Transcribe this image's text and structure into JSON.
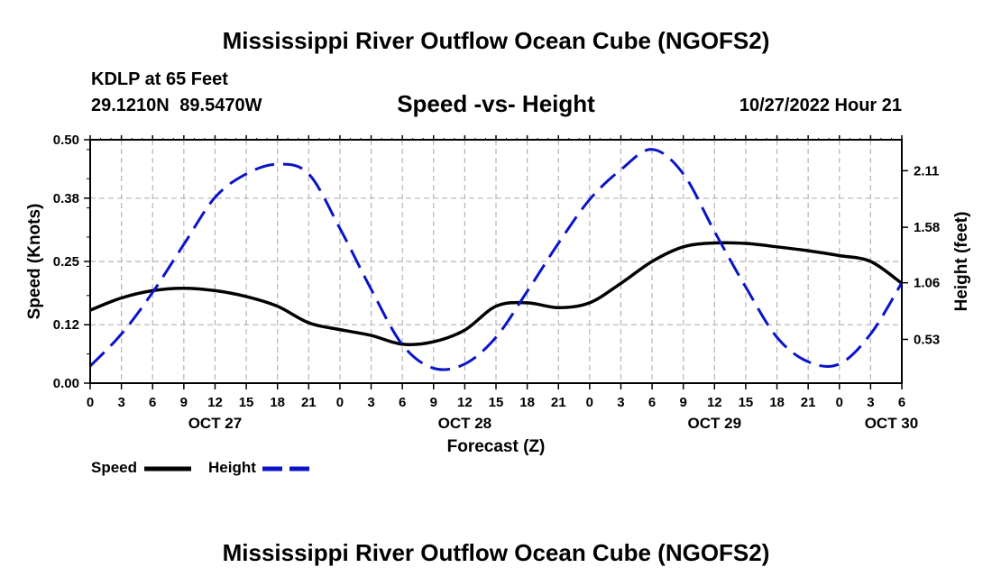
{
  "header": {
    "title": "Mississippi River Outflow Ocean Cube (NGOFS2)",
    "station": "KDLP at 65 Feet",
    "coords": "29.1210N  89.5470W",
    "subtitle": "Speed -vs- Height",
    "timestamp": "10/27/2022 Hour 21"
  },
  "footer": {
    "title": "Mississippi River Outflow Ocean Cube (NGOFS2)"
  },
  "legend": {
    "speed_label": "Speed",
    "height_label": "Height"
  },
  "colors": {
    "speed": "#000000",
    "height": "#0a14c8",
    "grid": "#b4b4b4"
  },
  "chart_data": {
    "type": "line",
    "title": "Speed -vs- Height",
    "xlabel": "Forecast (Z)",
    "ylabel": "Speed (Knots)",
    "y2label": "Height (feet)",
    "x_range_hours": [
      0,
      78
    ],
    "ylim": [
      0,
      0.5
    ],
    "y2lim": [
      0.12,
      2.4
    ],
    "yticks": [
      0.0,
      0.12,
      0.25,
      0.38,
      0.5
    ],
    "ytick_labels": [
      "0.00",
      "0.12",
      "0.25",
      "0.38",
      "0.50"
    ],
    "y2ticks": [
      0.53,
      1.06,
      1.58,
      2.11
    ],
    "y2tick_labels": [
      "0.53",
      "1.06",
      "1.58",
      "2.11"
    ],
    "xticks": [
      0,
      3,
      6,
      9,
      12,
      15,
      18,
      21,
      24,
      27,
      30,
      33,
      36,
      39,
      42,
      45,
      48,
      51,
      54,
      57,
      60,
      63,
      66,
      69,
      72,
      75,
      78
    ],
    "xtick_labels": [
      "0",
      "3",
      "6",
      "9",
      "12",
      "15",
      "18",
      "21",
      "0",
      "3",
      "6",
      "9",
      "12",
      "15",
      "18",
      "21",
      "0",
      "3",
      "6",
      "9",
      "12",
      "15",
      "18",
      "21",
      "0",
      "3",
      "6"
    ],
    "day_labels": [
      {
        "hour": 12,
        "label": "OCT 27"
      },
      {
        "hour": 36,
        "label": "OCT 28"
      },
      {
        "hour": 60,
        "label": "OCT 29"
      },
      {
        "hour": 77,
        "label": "OCT 30"
      }
    ],
    "grid": true,
    "legend_position": "bottom-left",
    "series": [
      {
        "name": "Speed",
        "axis": "left",
        "style": "solid",
        "x": [
          0,
          3,
          6,
          9,
          12,
          15,
          18,
          21,
          24,
          27,
          30,
          33,
          36,
          39,
          42,
          45,
          48,
          51,
          54,
          57,
          60,
          63,
          66,
          69,
          72,
          75,
          78
        ],
        "values": [
          0.15,
          0.175,
          0.19,
          0.195,
          0.19,
          0.178,
          0.158,
          0.124,
          0.11,
          0.098,
          0.08,
          0.085,
          0.109,
          0.158,
          0.165,
          0.155,
          0.165,
          0.205,
          0.25,
          0.28,
          0.288,
          0.287,
          0.28,
          0.272,
          0.262,
          0.25,
          0.205
        ]
      },
      {
        "name": "Height",
        "axis": "right",
        "style": "dashed",
        "x": [
          0,
          3,
          6,
          9,
          12,
          15,
          18,
          21,
          24,
          27,
          30,
          33,
          36,
          39,
          42,
          45,
          48,
          51,
          54,
          57,
          60,
          63,
          66,
          69,
          72,
          75,
          78
        ],
        "values": [
          0.28,
          0.58,
          0.97,
          1.42,
          1.86,
          2.08,
          2.17,
          2.08,
          1.57,
          1.0,
          0.48,
          0.26,
          0.3,
          0.55,
          0.98,
          1.43,
          1.84,
          2.12,
          2.31,
          2.08,
          1.54,
          1.02,
          0.55,
          0.32,
          0.3,
          0.58,
          1.06
        ]
      }
    ]
  }
}
